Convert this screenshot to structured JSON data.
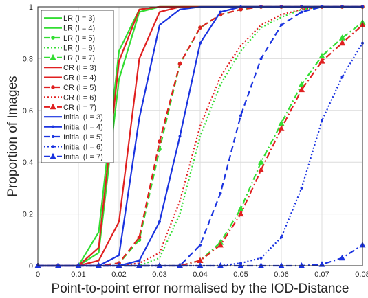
{
  "chart_data": {
    "type": "line",
    "title": "",
    "xlabel": "Point-to-point error normalised by the IOD-Distance",
    "ylabel": "Proportion of Images",
    "xlim": [
      0,
      0.08
    ],
    "ylim": [
      0,
      1
    ],
    "xticks": [
      "0",
      "0.01",
      "0.02",
      "0.03",
      "0.04",
      "0.05",
      "0.06",
      "0.07",
      "0.08"
    ],
    "yticks": [
      "0",
      "0.2",
      "0.4",
      "0.6",
      "0.8",
      "1"
    ],
    "grid": true,
    "legend_position": "top-left",
    "x": [
      0,
      0.005,
      0.01,
      0.015,
      0.02,
      0.025,
      0.03,
      0.035,
      0.04,
      0.045,
      0.05,
      0.055,
      0.06,
      0.065,
      0.07,
      0.075,
      0.08
    ],
    "series": [
      {
        "name": "LR (I = 3)",
        "color": "#33dd33",
        "dash": "solid",
        "marker": "none",
        "values": [
          0,
          0,
          0,
          0.13,
          0.83,
          0.99,
          1,
          1,
          1,
          1,
          1,
          1,
          1,
          1,
          1,
          1,
          1
        ]
      },
      {
        "name": "LR (I = 4)",
        "color": "#33dd33",
        "dash": "solid",
        "marker": "none",
        "values": [
          0,
          0,
          0,
          0.05,
          0.72,
          0.98,
          1,
          1,
          1,
          1,
          1,
          1,
          1,
          1,
          1,
          1,
          1
        ]
      },
      {
        "name": "LR (I = 5)",
        "color": "#33dd33",
        "dash": "dashed",
        "marker": "circle",
        "values": [
          0,
          0,
          0,
          0,
          0.01,
          0.1,
          0.45,
          0.78,
          0.92,
          0.97,
          0.99,
          1,
          1,
          1,
          1,
          1,
          1
        ]
      },
      {
        "name": "LR (I = 6)",
        "color": "#33dd33",
        "dash": "dotted",
        "marker": "none",
        "values": [
          0,
          0,
          0,
          0,
          0,
          0,
          0.03,
          0.2,
          0.5,
          0.7,
          0.83,
          0.92,
          0.96,
          0.99,
          1,
          1,
          1
        ]
      },
      {
        "name": "LR (I = 7)",
        "color": "#33dd33",
        "dash": "dashdot",
        "marker": "triangle",
        "values": [
          0,
          0,
          0,
          0,
          0,
          0,
          0,
          0,
          0.02,
          0.09,
          0.22,
          0.4,
          0.55,
          0.7,
          0.81,
          0.88,
          0.94
        ]
      },
      {
        "name": "CR (I = 3)",
        "color": "#e02020",
        "dash": "solid",
        "marker": "none",
        "values": [
          0,
          0,
          0,
          0.07,
          0.79,
          0.99,
          1,
          1,
          1,
          1,
          1,
          1,
          1,
          1,
          1,
          1,
          1
        ]
      },
      {
        "name": "CR (I = 4)",
        "color": "#e02020",
        "dash": "solid",
        "marker": "none",
        "values": [
          0,
          0,
          0,
          0.02,
          0.17,
          0.8,
          0.98,
          1,
          1,
          1,
          1,
          1,
          1,
          1,
          1,
          1,
          1
        ]
      },
      {
        "name": "CR (I = 5)",
        "color": "#e02020",
        "dash": "dashed",
        "marker": "circle",
        "values": [
          0,
          0,
          0,
          0,
          0.01,
          0.11,
          0.48,
          0.78,
          0.92,
          0.97,
          0.99,
          1,
          1,
          1,
          1,
          1,
          1
        ]
      },
      {
        "name": "CR (I = 6)",
        "color": "#e02020",
        "dash": "dotted",
        "marker": "none",
        "values": [
          0,
          0,
          0,
          0,
          0,
          0.01,
          0.05,
          0.25,
          0.54,
          0.73,
          0.85,
          0.93,
          0.97,
          0.99,
          1,
          1,
          1
        ]
      },
      {
        "name": "CR (I = 7)",
        "color": "#e02020",
        "dash": "dashdot",
        "marker": "triangle",
        "values": [
          0,
          0,
          0,
          0,
          0,
          0,
          0,
          0,
          0.02,
          0.08,
          0.2,
          0.37,
          0.53,
          0.68,
          0.79,
          0.86,
          0.93
        ]
      },
      {
        "name": "Initial (I = 3)",
        "color": "#1a33e0",
        "dash": "solid",
        "marker": "none",
        "values": [
          0,
          0,
          0,
          0,
          0.04,
          0.57,
          0.93,
          0.99,
          1,
          1,
          1,
          1,
          1,
          1,
          1,
          1,
          1
        ]
      },
      {
        "name": "Initial (I = 4)",
        "color": "#1a33e0",
        "dash": "solid",
        "marker": "point",
        "values": [
          0,
          0,
          0,
          0,
          0,
          0.02,
          0.17,
          0.5,
          0.86,
          0.98,
          1,
          1,
          1,
          1,
          1,
          1,
          1
        ]
      },
      {
        "name": "Initial (I = 5)",
        "color": "#1a33e0",
        "dash": "dashed",
        "marker": "point",
        "values": [
          0,
          0,
          0,
          0,
          0,
          0,
          0,
          0,
          0.08,
          0.28,
          0.58,
          0.8,
          0.93,
          0.98,
          1,
          1,
          1
        ]
      },
      {
        "name": "Initial (I = 6)",
        "color": "#1a33e0",
        "dash": "dotted",
        "marker": "point",
        "values": [
          0,
          0,
          0,
          0,
          0,
          0,
          0,
          0,
          0,
          0,
          0.01,
          0.03,
          0.11,
          0.3,
          0.56,
          0.73,
          0.86
        ]
      },
      {
        "name": "Initial (I = 7)",
        "color": "#1a33e0",
        "dash": "dashdot",
        "marker": "triangle",
        "values": [
          0,
          0,
          0,
          0,
          0,
          0,
          0,
          0,
          0,
          0,
          0,
          0,
          0,
          0,
          0.005,
          0.03,
          0.08
        ]
      }
    ]
  }
}
